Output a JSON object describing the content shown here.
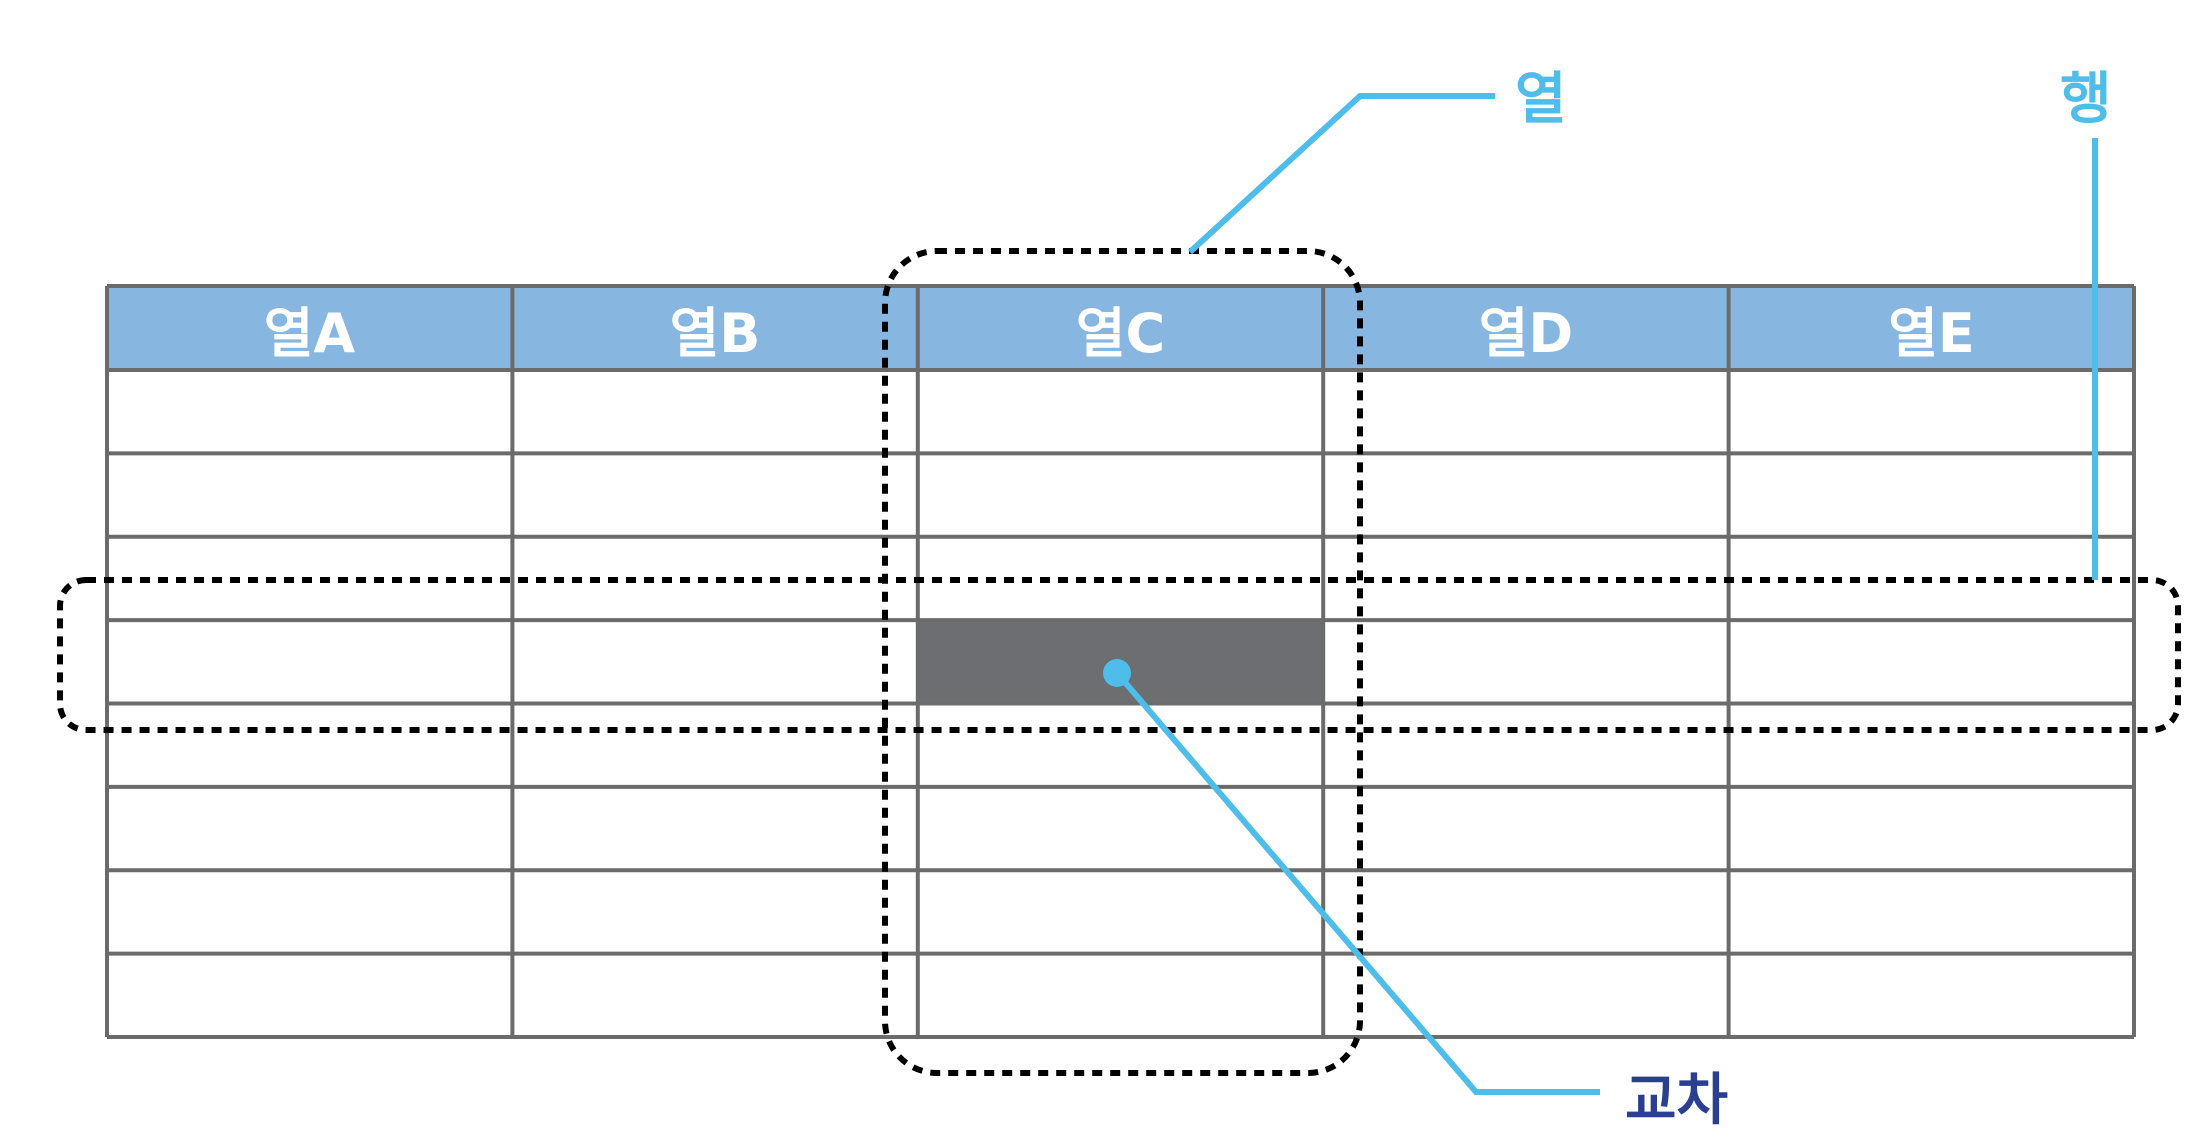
{
  "table": {
    "headers": [
      "열A",
      "열B",
      "열C",
      "열D",
      "열E"
    ],
    "body_rows": 8,
    "highlight": {
      "column": "열C",
      "row": 4
    }
  },
  "labels": {
    "column": "열",
    "row": "행",
    "intersection": "교차"
  },
  "colors": {
    "header_fill": "#87b6e1",
    "grid_line": "#6b6b6b",
    "intersection_cell": "#6d6e71",
    "callout_line": "#4fbdea",
    "column_label": "#4fbdea",
    "row_label": "#4fbdea",
    "intersection_label": "#2a3f8f",
    "dashed_outline": "#000000"
  }
}
